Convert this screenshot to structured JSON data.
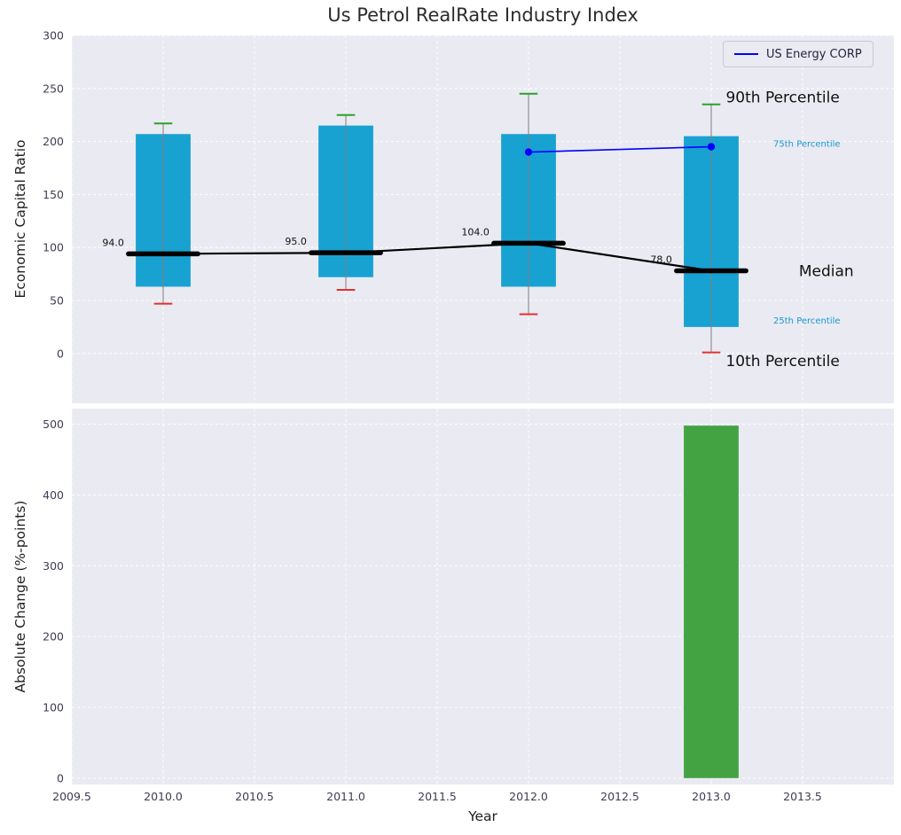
{
  "title": "Us Petrol RealRate Industry Index",
  "legend": {
    "label": "US Energy CORP"
  },
  "axes": {
    "top_ylabel": "Economic Capital Ratio",
    "bottom_ylabel": "Absolute Change (%-points)",
    "xlabel": "Year"
  },
  "chart_data": [
    {
      "type": "box-whisker-timeseries",
      "title": "Us Petrol RealRate Industry Index",
      "ylabel": "Economic Capital Ratio",
      "xlabel": "Year",
      "ylim": [
        -47,
        300
      ],
      "yticks": [
        0,
        50,
        100,
        150,
        200,
        250,
        300
      ],
      "xlim": [
        2009.5,
        2014.0
      ],
      "grid": true,
      "legend_position": "upper right",
      "years": [
        2010,
        2011,
        2012,
        2013
      ],
      "series": [
        {
          "name": "10th Percentile",
          "values": [
            47,
            60,
            37,
            1
          ]
        },
        {
          "name": "25th Percentile",
          "values": [
            63,
            72,
            63,
            25
          ]
        },
        {
          "name": "Median",
          "values": [
            94,
            95,
            104,
            78
          ]
        },
        {
          "name": "75th Percentile",
          "values": [
            207,
            215,
            207,
            205
          ]
        },
        {
          "name": "90th Percentile",
          "values": [
            217,
            225,
            245,
            235
          ]
        }
      ],
      "median_labels": [
        "94.0",
        "95.0",
        "104.0",
        "78.0"
      ],
      "company_line": {
        "name": "US Energy CORP",
        "x": [
          2012,
          2013
        ],
        "y": [
          190,
          195
        ]
      },
      "annotations": [
        {
          "text": "90th Percentile",
          "x": 2013.08,
          "y": 242,
          "color": "#111111",
          "font_px": 17
        },
        {
          "text": "75th Percentile",
          "x": 2013.34,
          "y": 198,
          "color": "#1899cc",
          "font_px": 10
        },
        {
          "text": "Median",
          "x": 2013.48,
          "y": 78,
          "color": "#111111",
          "font_px": 17
        },
        {
          "text": "25th Percentile",
          "x": 2013.34,
          "y": 31,
          "color": "#1899cc",
          "font_px": 10
        },
        {
          "text": "10th Percentile",
          "x": 2013.08,
          "y": -7,
          "color": "#111111",
          "font_px": 17
        }
      ],
      "colors": {
        "box": "#18a2d2",
        "whisker": "#7f7f7f",
        "cap_top": "#2ca02c",
        "cap_bottom": "#e03131",
        "median": "#000000",
        "company": "#0000ff",
        "axes_bg": "#eaeaf2",
        "grid": "#ffffff"
      }
    },
    {
      "type": "bar",
      "ylabel": "Absolute Change (%-points)",
      "xlabel": "Year",
      "ylim": [
        -9,
        522
      ],
      "yticks": [
        0,
        100,
        200,
        300,
        400,
        500
      ],
      "xlim": [
        2009.5,
        2014.0
      ],
      "xtick_labels": [
        "2009.5",
        "2010.0",
        "2010.5",
        "2011.0",
        "2011.5",
        "2012.0",
        "2012.5",
        "2013.0",
        "2013.5"
      ],
      "x": [
        2013
      ],
      "values": [
        498
      ],
      "bar_color": "#43a343",
      "grid": true
    }
  ]
}
